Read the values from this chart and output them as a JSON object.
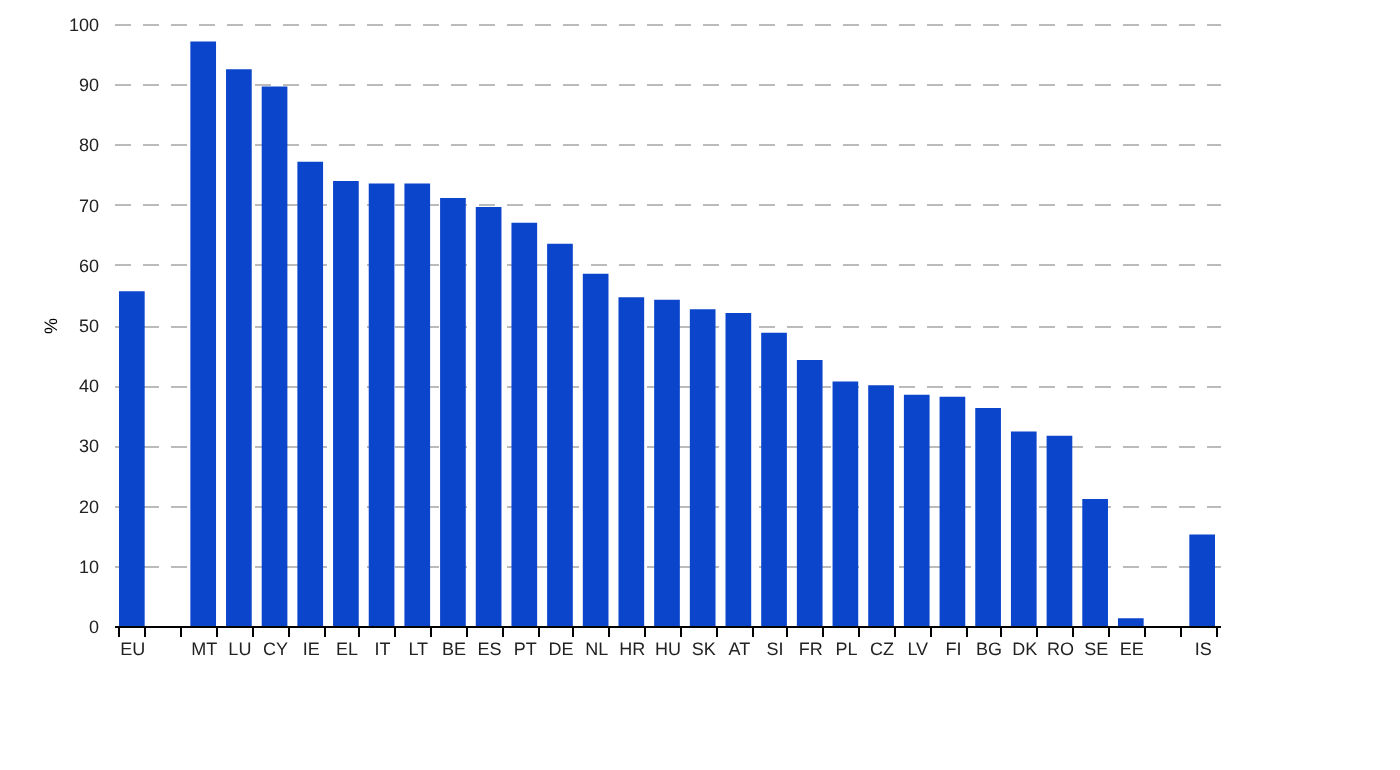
{
  "chart_data": {
    "type": "bar",
    "ylabel": "%",
    "categories": [
      "EU",
      null,
      "MT",
      "LU",
      "CY",
      "IE",
      "EL",
      "IT",
      "LT",
      "BE",
      "ES",
      "PT",
      "DE",
      "NL",
      "HR",
      "HU",
      "SK",
      "AT",
      "SI",
      "FR",
      "PL",
      "CZ",
      "LV",
      "FI",
      "BG",
      "DK",
      "RO",
      "SE",
      "EE",
      null,
      "IS"
    ],
    "values": [
      55.6,
      null,
      97.1,
      92.5,
      89.6,
      77.1,
      73.9,
      73.5,
      73.5,
      71.1,
      69.6,
      67.0,
      63.5,
      58.5,
      54.6,
      54.2,
      52.6,
      52.0,
      48.7,
      44.2,
      40.6,
      40.0,
      38.4,
      38.1,
      36.2,
      32.3,
      31.6,
      21.1,
      1.3,
      null,
      15.2
    ],
    "color": "#0b45cc",
    "ylim": [
      0,
      100
    ],
    "yticks": [
      0,
      10,
      20,
      30,
      40,
      50,
      60,
      70,
      80,
      90,
      100
    ],
    "grid": "y"
  }
}
